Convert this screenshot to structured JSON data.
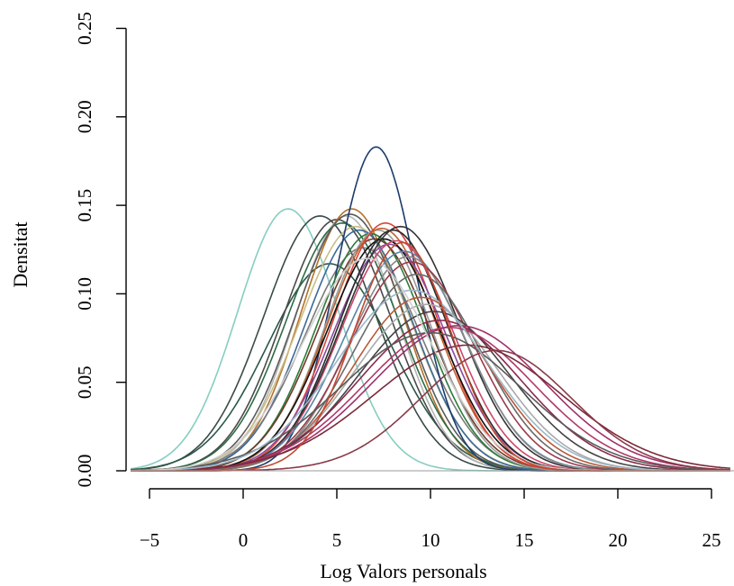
{
  "chart_data": {
    "type": "line",
    "title": "",
    "xlabel": "Log Valors personals",
    "ylabel": "Densitat",
    "xlim": [
      -6,
      26
    ],
    "ylim": [
      0,
      0.25
    ],
    "xticks": [
      -5,
      0,
      5,
      10,
      15,
      20,
      25
    ],
    "yticks": [
      0.0,
      0.05,
      0.1,
      0.15,
      0.2,
      0.25
    ],
    "xtick_labels": [
      "−5",
      "0",
      "5",
      "10",
      "15",
      "20",
      "25"
    ],
    "ytick_labels": [
      "0.00",
      "0.05",
      "0.10",
      "0.15",
      "0.20",
      "0.25"
    ],
    "grid": false,
    "legend": "none",
    "series": [
      {
        "mu": 2.4,
        "sigma": 2.7,
        "peak": 0.148,
        "color": "#86cdc1"
      },
      {
        "mu": 4.1,
        "sigma": 3.0,
        "peak": 0.144,
        "color": "#3a4a48"
      },
      {
        "mu": 4.6,
        "sigma": 3.3,
        "peak": 0.117,
        "color": "#2a5848"
      },
      {
        "mu": 5.0,
        "sigma": 2.9,
        "peak": 0.142,
        "color": "#4a4a4a"
      },
      {
        "mu": 5.5,
        "sigma": 2.7,
        "peak": 0.144,
        "color": "#b6b6b6"
      },
      {
        "mu": 5.8,
        "sigma": 2.7,
        "peak": 0.148,
        "color": "#b5722a"
      },
      {
        "mu": 5.3,
        "sigma": 3.0,
        "peak": 0.14,
        "color": "#2e6a46"
      },
      {
        "mu": 5.7,
        "sigma": 2.9,
        "peak": 0.145,
        "color": "#5a5a5a"
      },
      {
        "mu": 6.0,
        "sigma": 3.0,
        "peak": 0.138,
        "color": "#c9bd86"
      },
      {
        "mu": 6.2,
        "sigma": 2.9,
        "peak": 0.136,
        "color": "#3b6a9a"
      },
      {
        "mu": 6.4,
        "sigma": 3.1,
        "peak": 0.126,
        "color": "#7a7a7a"
      },
      {
        "mu": 7.1,
        "sigma": 2.15,
        "peak": 0.183,
        "color": "#1d3b6a"
      },
      {
        "mu": 6.8,
        "sigma": 2.9,
        "peak": 0.134,
        "color": "#2d7a3a"
      },
      {
        "mu": 7.0,
        "sigma": 3.0,
        "peak": 0.131,
        "color": "#6f3a2a"
      },
      {
        "mu": 7.2,
        "sigma": 2.8,
        "peak": 0.136,
        "color": "#9a9a9a"
      },
      {
        "mu": 7.4,
        "sigma": 2.9,
        "peak": 0.137,
        "color": "#c0622e"
      },
      {
        "mu": 7.6,
        "sigma": 2.8,
        "peak": 0.14,
        "color": "#d9443a"
      },
      {
        "mu": 7.8,
        "sigma": 3.0,
        "peak": 0.128,
        "color": "#8a4aa0"
      },
      {
        "mu": 7.5,
        "sigma": 3.0,
        "peak": 0.131,
        "color": "#111111"
      },
      {
        "mu": 8.0,
        "sigma": 2.9,
        "peak": 0.136,
        "color": "#2a2a2a"
      },
      {
        "mu": 8.2,
        "sigma": 3.0,
        "peak": 0.13,
        "color": "#c8486a"
      },
      {
        "mu": 8.4,
        "sigma": 3.1,
        "peak": 0.138,
        "color": "#333333"
      },
      {
        "mu": 8.6,
        "sigma": 3.2,
        "peak": 0.124,
        "color": "#5a86a6"
      },
      {
        "mu": 8.8,
        "sigma": 3.1,
        "peak": 0.121,
        "color": "#888888"
      },
      {
        "mu": 9.0,
        "sigma": 3.3,
        "peak": 0.118,
        "color": "#9a3a4a"
      },
      {
        "mu": 9.3,
        "sigma": 3.4,
        "peak": 0.111,
        "color": "#6a6a6a"
      },
      {
        "mu": 9.5,
        "sigma": 3.6,
        "peak": 0.098,
        "color": "#b85a3a"
      },
      {
        "mu": 9.8,
        "sigma": 3.8,
        "peak": 0.094,
        "color": "#aaaaaa"
      },
      {
        "mu": 10.2,
        "sigma": 4.0,
        "peak": 0.09,
        "color": "#444444"
      },
      {
        "mu": 10.5,
        "sigma": 4.3,
        "peak": 0.085,
        "color": "#8a2a4a"
      },
      {
        "mu": 11.0,
        "sigma": 4.5,
        "peak": 0.081,
        "color": "#b03a6a"
      },
      {
        "mu": 11.5,
        "sigma": 4.6,
        "peak": 0.082,
        "color": "#a0306a"
      },
      {
        "mu": 10.0,
        "sigma": 4.8,
        "peak": 0.078,
        "color": "#5a5a5a"
      },
      {
        "mu": 12.0,
        "sigma": 5.0,
        "peak": 0.071,
        "color": "#7a2a3a"
      },
      {
        "mu": 13.5,
        "sigma": 4.0,
        "peak": 0.068,
        "color": "#8a3a48"
      },
      {
        "mu": 9.0,
        "sigma": 4.0,
        "peak": 0.102,
        "color": "#9ab8c8"
      },
      {
        "mu": 6.6,
        "sigma": 3.4,
        "peak": 0.12,
        "color": "#cfcfcf"
      },
      {
        "mu": 8.5,
        "sigma": 2.6,
        "peak": 0.129,
        "color": "#c24a30"
      }
    ]
  }
}
